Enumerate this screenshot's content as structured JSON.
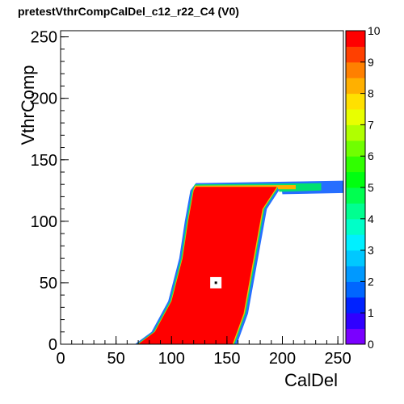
{
  "chart_data": {
    "type": "heatmap",
    "title": "pretestVthrCompCalDel_c12_r22_C4 (V0)",
    "xlabel": "CalDel",
    "ylabel": "VthrComp",
    "xlim": [
      0,
      255
    ],
    "ylim": [
      0,
      255
    ],
    "zlim": [
      0,
      10
    ],
    "x_ticks": [
      0,
      50,
      100,
      150,
      200,
      250
    ],
    "y_ticks": [
      0,
      50,
      100,
      150,
      200,
      250
    ],
    "z_ticks": [
      0,
      1,
      2,
      3,
      4,
      5,
      6,
      7,
      8,
      9,
      10
    ],
    "grid": false,
    "palette": [
      "#7a00ff",
      "#3000ff",
      "#0022ff",
      "#0066ff",
      "#0099ff",
      "#00c8ff",
      "#00f0ff",
      "#00ffc8",
      "#00ff90",
      "#00ff50",
      "#00ff10",
      "#30ff00",
      "#70ff00",
      "#b0ff00",
      "#e8ff00",
      "#ffe000",
      "#ffb000",
      "#ff8000",
      "#ff4000",
      "#ff0000"
    ],
    "region": {
      "value": 10,
      "description_points_left": [
        [
          70,
          0
        ],
        [
          85,
          10
        ],
        [
          100,
          35
        ],
        [
          110,
          70
        ],
        [
          115,
          100
        ],
        [
          120,
          125
        ]
      ],
      "description_points_right": [
        [
          155,
          0
        ],
        [
          165,
          25
        ],
        [
          175,
          75
        ],
        [
          182,
          110
        ],
        [
          195,
          128
        ],
        [
          255,
          132
        ]
      ],
      "plateau_vthrcomp": 128
    },
    "marker": {
      "x": 140,
      "y": 50
    }
  }
}
